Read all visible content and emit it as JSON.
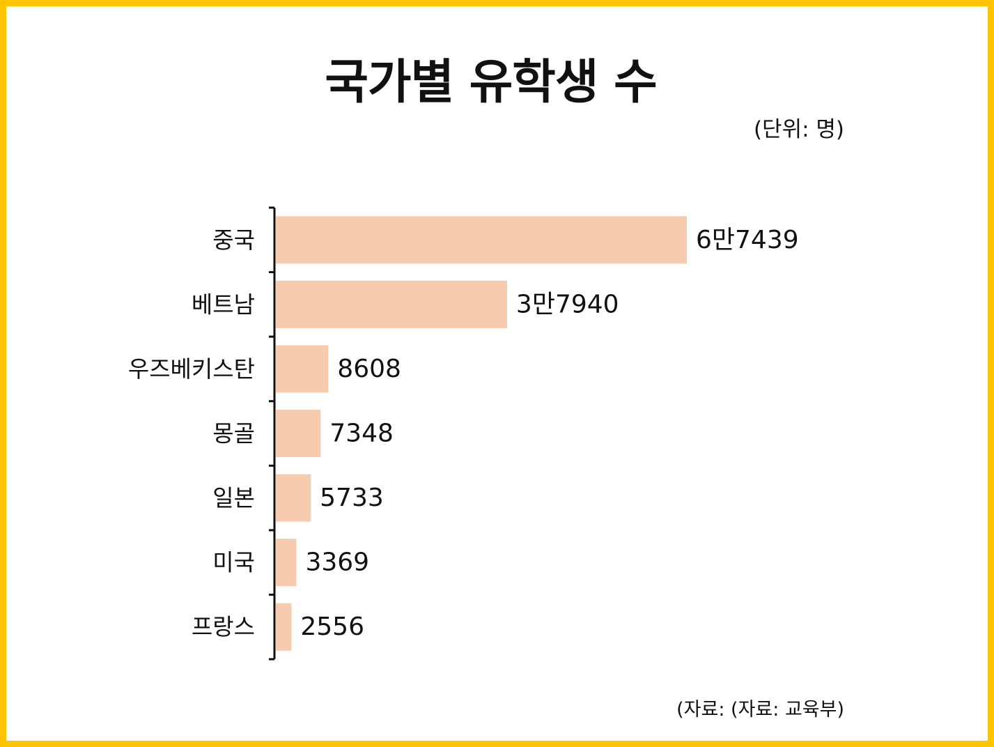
{
  "title": "국가별 유학생 수",
  "unit_note": "(단위: 명)",
  "source_note": "(자료: (자료: 교육부)",
  "chart_data": {
    "type": "bar",
    "orientation": "horizontal",
    "categories": [
      "중국",
      "베트남",
      "우즈베키스탄",
      "몽골",
      "일본",
      "미국",
      "프랑스"
    ],
    "values": [
      67439,
      37940,
      8608,
      7348,
      5733,
      3369,
      2556
    ],
    "value_labels": [
      "6만7439",
      "3만7940",
      "8608",
      "7348",
      "5733",
      "3369",
      "2556"
    ],
    "title": "국가별 유학생 수",
    "xlabel": "",
    "ylabel": "",
    "xlim": [
      0,
      67439
    ],
    "grid": false,
    "legend": "none"
  },
  "colors": {
    "frame": "#FFC400",
    "bar": "#F7CBAD",
    "axis": "#111111",
    "text": "#111111"
  }
}
